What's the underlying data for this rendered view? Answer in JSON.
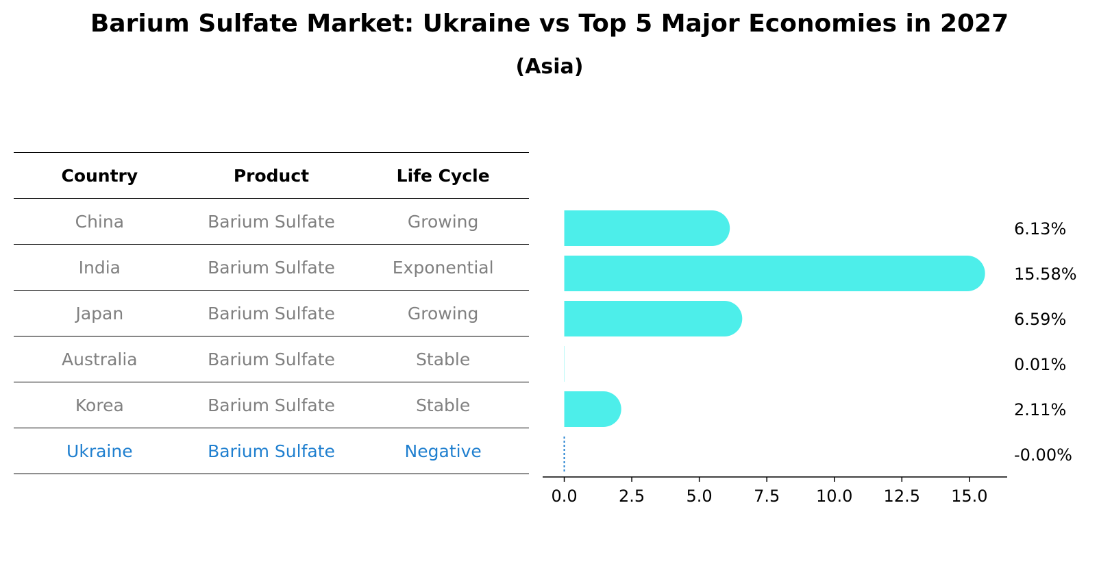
{
  "chart_data": {
    "type": "bar",
    "orientation": "horizontal",
    "title": "Barium Sulfate Market: Ukraine vs Top 5 Major Economies in 2027",
    "subtitle": "(Asia)",
    "categories": [
      "China",
      "India",
      "Japan",
      "Australia",
      "Korea",
      "Ukraine"
    ],
    "values": [
      6.13,
      15.58,
      6.59,
      0.01,
      2.11,
      -0.0
    ],
    "value_labels": [
      "6.13%",
      "15.58%",
      "6.59%",
      "0.01%",
      "2.11%",
      "-0.00%"
    ],
    "xlim": [
      -0.8,
      16.4
    ],
    "xticks": [
      0.0,
      2.5,
      5.0,
      7.5,
      10.0,
      12.5,
      15.0
    ],
    "xtick_labels": [
      "0.0",
      "2.5",
      "5.0",
      "7.5",
      "10.0",
      "12.5",
      "15.0"
    ],
    "bar_color": "#4deeea",
    "highlight_color": "#1f7fcf",
    "highlight_category": "Ukraine"
  },
  "table": {
    "headers": [
      "Country",
      "Product",
      "Life Cycle"
    ],
    "rows": [
      {
        "country": "China",
        "product": "Barium Sulfate",
        "life_cycle": "Growing"
      },
      {
        "country": "India",
        "product": "Barium Sulfate",
        "life_cycle": "Exponential"
      },
      {
        "country": "Japan",
        "product": "Barium Sulfate",
        "life_cycle": "Growing"
      },
      {
        "country": "Australia",
        "product": "Barium Sulfate",
        "life_cycle": "Stable"
      },
      {
        "country": "Korea",
        "product": "Barium Sulfate",
        "life_cycle": "Stable"
      },
      {
        "country": "Ukraine",
        "product": "Barium Sulfate",
        "life_cycle": "Negative"
      }
    ]
  }
}
